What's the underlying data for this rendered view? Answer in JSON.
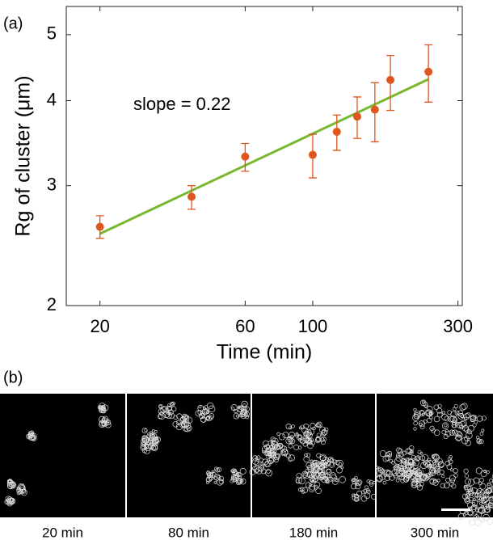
{
  "chart_data": {
    "type": "scatter",
    "panel_label": "(a)",
    "xlabel": "Time (min)",
    "ylabel": "Rg of cluster (μm)",
    "annotation": "slope = 0.22",
    "log_x": true,
    "log_y": true,
    "xlim": [
      15.5,
      310
    ],
    "ylim": [
      2,
      5.5
    ],
    "xticks": [
      20,
      60,
      100,
      300
    ],
    "yticks": [
      2,
      3,
      4,
      5
    ],
    "series": [
      {
        "name": "data",
        "color": "#e0561e",
        "x": [
          20,
          40,
          60,
          100,
          120,
          140,
          160,
          180,
          240
        ],
        "values": [
          2.61,
          2.89,
          3.31,
          3.33,
          3.6,
          3.79,
          3.88,
          4.29,
          4.41
        ],
        "yerr_lower": [
          2.51,
          2.77,
          3.15,
          3.08,
          3.38,
          3.52,
          3.48,
          3.87,
          3.98
        ],
        "yerr_upper": [
          2.71,
          3.0,
          3.46,
          3.57,
          3.81,
          4.05,
          4.25,
          4.66,
          4.83
        ]
      },
      {
        "name": "fit",
        "color": "#77b82f",
        "x": [
          20,
          240
        ],
        "values": [
          2.55,
          4.3
        ]
      }
    ]
  },
  "images": {
    "panel_label": "(b)",
    "captions": [
      "20 min",
      "80 min",
      "180 min",
      "300 min"
    ]
  }
}
